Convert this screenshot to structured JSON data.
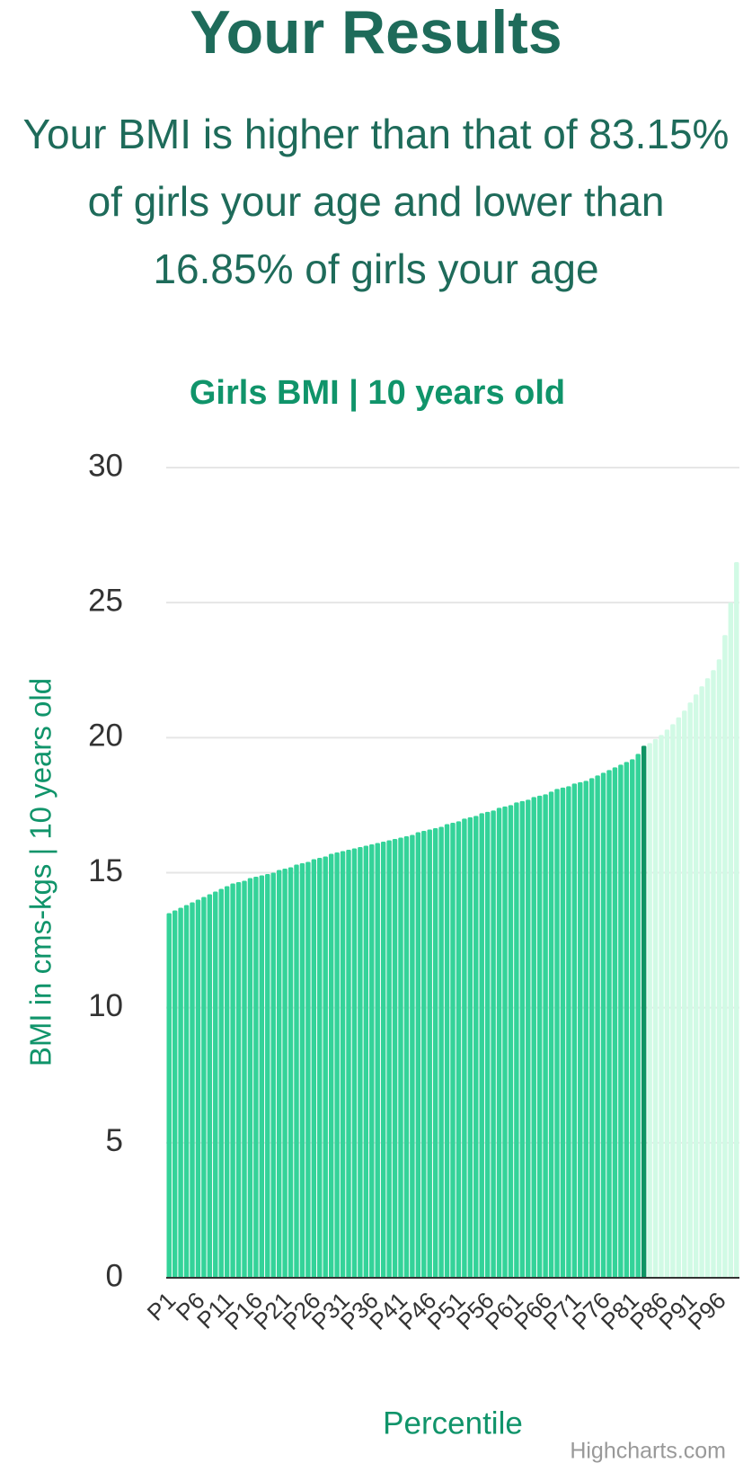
{
  "header": {
    "title": "Your Results",
    "subtitle": "Your BMI is higher than that of 83.15% of girls your age and lower than 16.85% of girls your age"
  },
  "chart_data": {
    "type": "bar",
    "title": "Girls BMI | 10 years old",
    "y_label": "BMI in cms-kgs | 10 years old",
    "x_label": "Percentile",
    "credit": "Highcharts.com",
    "categories": [
      "P1",
      null,
      null,
      null,
      null,
      "P6",
      null,
      null,
      null,
      null,
      "P11",
      null,
      null,
      null,
      null,
      "P16",
      null,
      null,
      null,
      null,
      "P21",
      null,
      null,
      null,
      null,
      "P26",
      null,
      null,
      null,
      null,
      "P31",
      null,
      null,
      null,
      null,
      "P36",
      null,
      null,
      null,
      null,
      "P41",
      null,
      null,
      null,
      null,
      "P46",
      null,
      null,
      null,
      null,
      "P51",
      null,
      null,
      null,
      null,
      "P56",
      null,
      null,
      null,
      null,
      "P61",
      null,
      null,
      null,
      null,
      "P66",
      null,
      null,
      null,
      null,
      "P71",
      null,
      null,
      null,
      null,
      "P76",
      null,
      null,
      null,
      null,
      "P81",
      null,
      null,
      null,
      null,
      "P86",
      null,
      null,
      null,
      null,
      "P91",
      null,
      null,
      null,
      null,
      "P96",
      null,
      null,
      null
    ],
    "values": [
      13.5,
      13.6,
      13.7,
      13.8,
      13.9,
      14.0,
      14.1,
      14.2,
      14.3,
      14.4,
      14.5,
      14.6,
      14.65,
      14.7,
      14.8,
      14.85,
      14.9,
      14.95,
      15.0,
      15.1,
      15.15,
      15.2,
      15.3,
      15.35,
      15.4,
      15.5,
      15.55,
      15.6,
      15.7,
      15.75,
      15.8,
      15.85,
      15.9,
      15.95,
      16.0,
      16.05,
      16.1,
      16.15,
      16.2,
      16.25,
      16.3,
      16.35,
      16.4,
      16.5,
      16.55,
      16.6,
      16.65,
      16.7,
      16.8,
      16.85,
      16.9,
      17.0,
      17.05,
      17.1,
      17.2,
      17.25,
      17.3,
      17.4,
      17.45,
      17.5,
      17.6,
      17.65,
      17.7,
      17.8,
      17.85,
      17.9,
      18.0,
      18.1,
      18.15,
      18.2,
      18.3,
      18.35,
      18.4,
      18.5,
      18.6,
      18.7,
      18.8,
      18.9,
      19.0,
      19.1,
      19.2,
      19.4,
      19.7,
      19.8,
      19.95,
      20.1,
      20.3,
      20.5,
      20.75,
      21.0,
      21.3,
      21.6,
      21.9,
      22.2,
      22.5,
      22.9,
      23.8,
      25.0,
      26.5
    ],
    "colors": [
      "#34d399",
      "#34d399",
      "#34d399",
      "#34d399",
      "#34d399",
      "#34d399",
      "#34d399",
      "#34d399",
      "#34d399",
      "#34d399",
      "#34d399",
      "#34d399",
      "#34d399",
      "#34d399",
      "#34d399",
      "#34d399",
      "#34d399",
      "#34d399",
      "#34d399",
      "#34d399",
      "#34d399",
      "#34d399",
      "#34d399",
      "#34d399",
      "#34d399",
      "#34d399",
      "#34d399",
      "#34d399",
      "#34d399",
      "#34d399",
      "#34d399",
      "#34d399",
      "#34d399",
      "#34d399",
      "#34d399",
      "#34d399",
      "#34d399",
      "#34d399",
      "#34d399",
      "#34d399",
      "#34d399",
      "#34d399",
      "#34d399",
      "#34d399",
      "#34d399",
      "#34d399",
      "#34d399",
      "#34d399",
      "#34d399",
      "#34d399",
      "#34d399",
      "#34d399",
      "#34d399",
      "#34d399",
      "#34d399",
      "#34d399",
      "#34d399",
      "#34d399",
      "#34d399",
      "#34d399",
      "#34d399",
      "#34d399",
      "#34d399",
      "#34d399",
      "#34d399",
      "#34d399",
      "#34d399",
      "#34d399",
      "#34d399",
      "#34d399",
      "#34d399",
      "#34d399",
      "#34d399",
      "#34d399",
      "#34d399",
      "#34d399",
      "#34d399",
      "#34d399",
      "#34d399",
      "#34d399",
      "#34d399",
      "#34d399",
      "#0e9463",
      "#d1fae5",
      "#d1fae5",
      "#d1fae5",
      "#d1fae5",
      "#d1fae5",
      "#d1fae5",
      "#d1fae5",
      "#d1fae5",
      "#d1fae5",
      "#d1fae5",
      "#d1fae5",
      "#d1fae5",
      "#d1fae5",
      "#d1fae5",
      "#d1fae5",
      "#d1fae5"
    ],
    "ylim": [
      0,
      30
    ],
    "yticks": [
      0,
      5,
      10,
      15,
      20,
      25,
      30
    ],
    "grid": true
  }
}
